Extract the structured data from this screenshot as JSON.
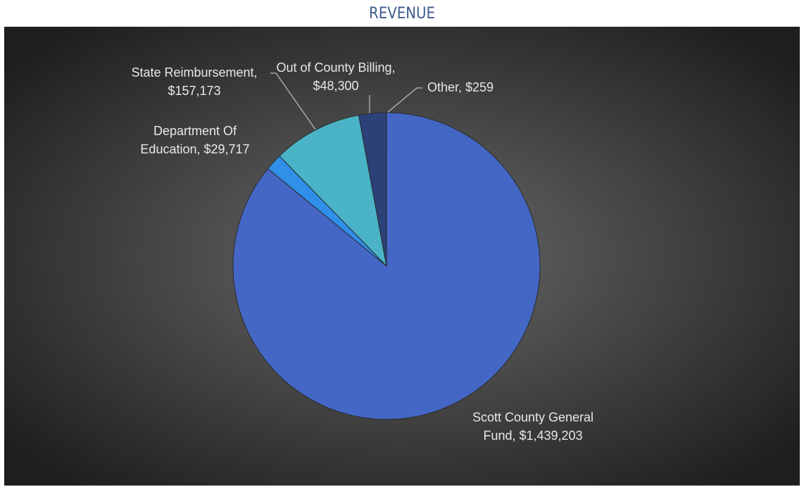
{
  "chart_data": {
    "type": "pie",
    "title": "REVENUE",
    "values": [
      1439203,
      29717,
      157173,
      48300,
      259
    ],
    "value_labels": [
      "Scott County General Fund, $1,439,203",
      "Department Of Education, $29,717",
      "State Reimbursement, $157,173",
      "Out of County Billing, $48,300",
      "Other, $259"
    ],
    "colors": [
      "#4467c5",
      "#2f8fe9",
      "#4ab3c6",
      "#2b4178",
      "#1f3362"
    ]
  }
}
